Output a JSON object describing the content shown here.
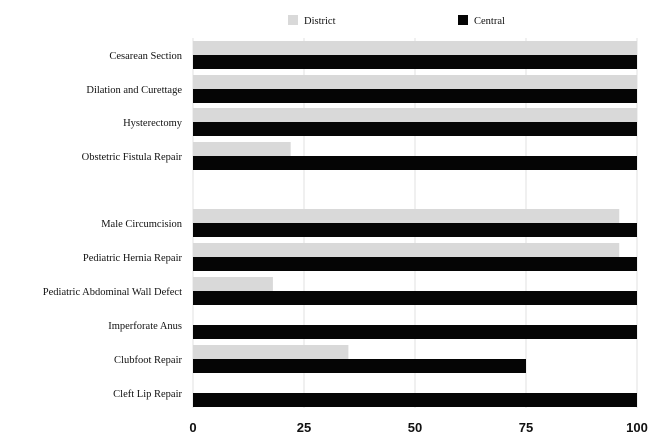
{
  "chart_data": {
    "type": "bar",
    "orientation": "horizontal",
    "title": "",
    "xlabel": "",
    "ylabel": "",
    "xlim": [
      0,
      100
    ],
    "ticks": [
      "0",
      "25",
      "50",
      "75",
      "100"
    ],
    "grid": true,
    "legend": "top-center",
    "categories": [
      "Cesarean Section",
      "Dilation and Curettage",
      "Hysterectomy",
      "Obstetric Fistula Repair",
      "Male Circumcision",
      "Pediatric Hernia Repair",
      "Pediatric Abdominal Wall Defect",
      "Imperforate Anus",
      "Clubfoot Repair",
      "Cleft Lip Repair"
    ],
    "series": [
      {
        "name": "District",
        "color": "#d9d9d9",
        "values": [
          100,
          100,
          100,
          22,
          96,
          96,
          18,
          0,
          35,
          0
        ]
      },
      {
        "name": "Central",
        "color": "#050505",
        "values": [
          100,
          100,
          100,
          100,
          100,
          100,
          100,
          100,
          75,
          100
        ]
      }
    ]
  }
}
